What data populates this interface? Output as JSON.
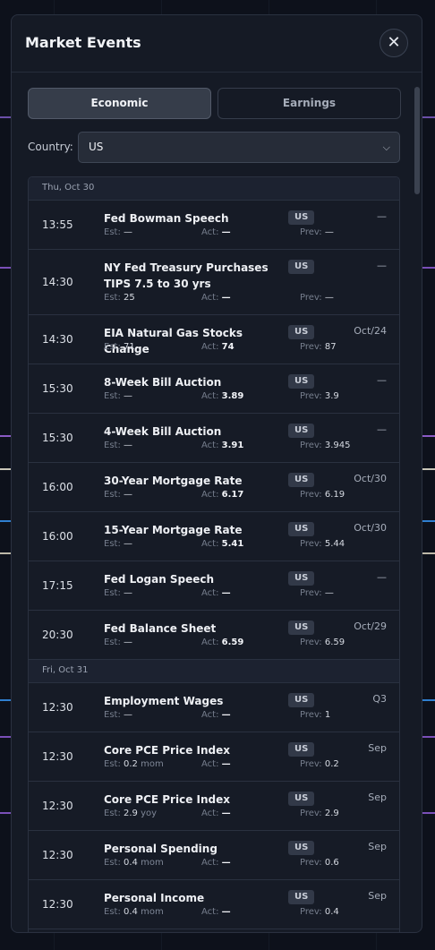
{
  "header": {
    "title": "Market Events",
    "close_glyph": "✕"
  },
  "tabs": [
    {
      "label": "Economic",
      "active": true
    },
    {
      "label": "Earnings",
      "active": false
    }
  ],
  "filter": {
    "label": "Country:",
    "value": "US",
    "chevron": "⌵"
  },
  "labels": {
    "est": "Est:",
    "act": "Act:",
    "prev": "Prev:"
  },
  "days": [
    {
      "date": "Thu, Oct 30",
      "events": [
        {
          "time": "13:55",
          "name": "Fed Bowman Speech",
          "country": "US",
          "period": "—",
          "est": "—",
          "est_unit": "",
          "act": "—",
          "prev": "—"
        },
        {
          "time": "14:30",
          "name": "NY Fed Treasury Purchases TIPS 7.5 to 30 yrs",
          "country": "US",
          "period": "—",
          "est": "25",
          "est_unit": "",
          "act": "—",
          "prev": "—",
          "tall": true
        },
        {
          "time": "14:30",
          "name": "EIA Natural Gas Stocks Change",
          "country": "US",
          "period": "Oct/24",
          "est": "71",
          "est_unit": "",
          "act": "74",
          "prev": "87"
        },
        {
          "time": "15:30",
          "name": "8-Week Bill Auction",
          "country": "US",
          "period": "—",
          "est": "—",
          "est_unit": "",
          "act": "3.89",
          "prev": "3.9"
        },
        {
          "time": "15:30",
          "name": "4-Week Bill Auction",
          "country": "US",
          "period": "—",
          "est": "—",
          "est_unit": "",
          "act": "3.91",
          "prev": "3.945"
        },
        {
          "time": "16:00",
          "name": "30-Year Mortgage Rate",
          "country": "US",
          "period": "Oct/30",
          "est": "—",
          "est_unit": "",
          "act": "6.17",
          "prev": "6.19"
        },
        {
          "time": "16:00",
          "name": "15-Year Mortgage Rate",
          "country": "US",
          "period": "Oct/30",
          "est": "—",
          "est_unit": "",
          "act": "5.41",
          "prev": "5.44"
        },
        {
          "time": "17:15",
          "name": "Fed Logan Speech",
          "country": "US",
          "period": "—",
          "est": "—",
          "est_unit": "",
          "act": "—",
          "prev": "—"
        },
        {
          "time": "20:30",
          "name": "Fed Balance Sheet",
          "country": "US",
          "period": "Oct/29",
          "est": "—",
          "est_unit": "",
          "act": "6.59",
          "prev": "6.59"
        }
      ]
    },
    {
      "date": "Fri, Oct 31",
      "events": [
        {
          "time": "12:30",
          "name": "Employment Wages",
          "country": "US",
          "period": "Q3",
          "est": "—",
          "est_unit": "",
          "act": "—",
          "prev": "1"
        },
        {
          "time": "12:30",
          "name": "Core PCE Price Index",
          "country": "US",
          "period": "Sep",
          "est": "0.2",
          "est_unit": "mom",
          "act": "—",
          "prev": "0.2"
        },
        {
          "time": "12:30",
          "name": "Core PCE Price Index",
          "country": "US",
          "period": "Sep",
          "est": "2.9",
          "est_unit": "yoy",
          "act": "—",
          "prev": "2.9"
        },
        {
          "time": "12:30",
          "name": "Personal Spending",
          "country": "US",
          "period": "Sep",
          "est": "0.4",
          "est_unit": "mom",
          "act": "—",
          "prev": "0.6"
        },
        {
          "time": "12:30",
          "name": "Personal Income",
          "country": "US",
          "period": "Sep",
          "est": "0.4",
          "est_unit": "mom",
          "act": "—",
          "prev": "0.4"
        }
      ]
    }
  ]
}
